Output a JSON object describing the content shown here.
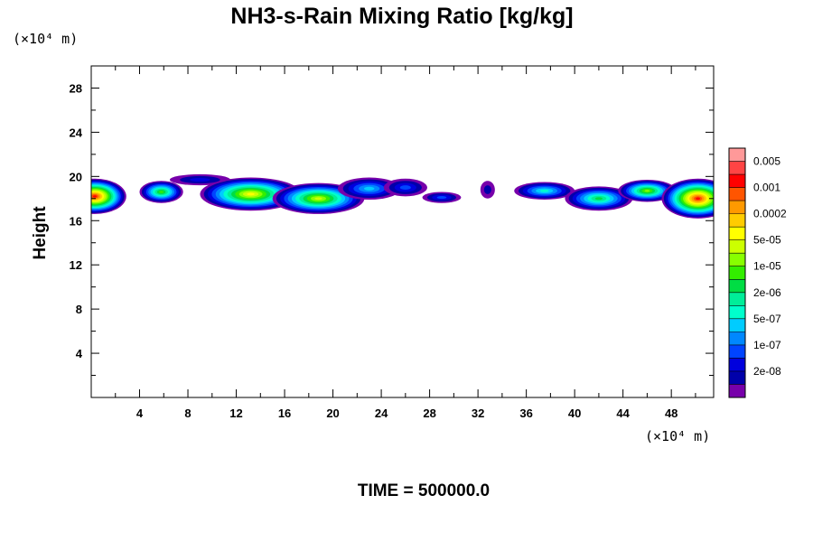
{
  "chart_data": {
    "type": "heatmap",
    "title": "NH3-s-Rain Mixing Ratio [kg/kg]",
    "ylabel": "Height",
    "x_unit": "(×10⁴ m)",
    "y_unit": "(×10⁴ m)",
    "xlim": [
      0,
      51.5
    ],
    "ylim": [
      0,
      30
    ],
    "x_ticks": [
      4,
      8,
      12,
      16,
      20,
      24,
      28,
      32,
      36,
      40,
      44,
      48
    ],
    "y_ticks": [
      4,
      8,
      12,
      16,
      20,
      24,
      28
    ],
    "footer": "TIME = 500000.0",
    "colorbar": {
      "labels": [
        "0.005",
        "0.001",
        "0.0002",
        "5e-05",
        "1e-05",
        "2e-06",
        "5e-07",
        "1e-07",
        "2e-08"
      ],
      "colors": [
        "#ff9999",
        "#ff4444",
        "#ff0000",
        "#ff5500",
        "#ff9900",
        "#ffcc00",
        "#ffff00",
        "#ccff00",
        "#88ff00",
        "#33ee00",
        "#00dd44",
        "#00ee99",
        "#00ffcc",
        "#00ccff",
        "#0088ff",
        "#0044ff",
        "#0000dd",
        "#0000aa",
        "#7700aa"
      ]
    },
    "field": {
      "level_colors": [
        "#7700aa",
        "#0000aa",
        "#0000dd",
        "#0044ff",
        "#0088ff",
        "#00ccff",
        "#00ffcc",
        "#00ee99",
        "#00dd44",
        "#33ee00",
        "#88ff00",
        "#ccff00",
        "#ffff00",
        "#ffcc00",
        "#ff9900",
        "#ff5500",
        "#ff0000",
        "#ff4444"
      ],
      "blobs": [
        {
          "x": 0.3,
          "y": 18.2,
          "rx": 2.6,
          "ry": 1.6,
          "level": 16
        },
        {
          "x": 5.8,
          "y": 18.6,
          "rx": 1.8,
          "ry": 1.0,
          "level": 9
        },
        {
          "x": 9.0,
          "y": 19.7,
          "rx": 2.5,
          "ry": 0.5,
          "level": 2
        },
        {
          "x": 13.2,
          "y": 18.4,
          "rx": 4.2,
          "ry": 1.5,
          "level": 12
        },
        {
          "x": 18.8,
          "y": 18.0,
          "rx": 3.8,
          "ry": 1.4,
          "level": 11
        },
        {
          "x": 23.0,
          "y": 18.9,
          "rx": 2.6,
          "ry": 1.0,
          "level": 5
        },
        {
          "x": 26.0,
          "y": 19.0,
          "rx": 1.8,
          "ry": 0.8,
          "level": 3
        },
        {
          "x": 29.0,
          "y": 18.1,
          "rx": 1.6,
          "ry": 0.5,
          "level": 3
        },
        {
          "x": 32.8,
          "y": 18.8,
          "rx": 0.6,
          "ry": 0.8,
          "level": 1
        },
        {
          "x": 37.5,
          "y": 18.7,
          "rx": 2.5,
          "ry": 0.8,
          "level": 6
        },
        {
          "x": 42.0,
          "y": 18.0,
          "rx": 2.8,
          "ry": 1.1,
          "level": 8
        },
        {
          "x": 46.0,
          "y": 18.7,
          "rx": 2.4,
          "ry": 1.0,
          "level": 10
        },
        {
          "x": 50.2,
          "y": 18.0,
          "rx": 3.0,
          "ry": 1.8,
          "level": 16
        }
      ]
    }
  }
}
